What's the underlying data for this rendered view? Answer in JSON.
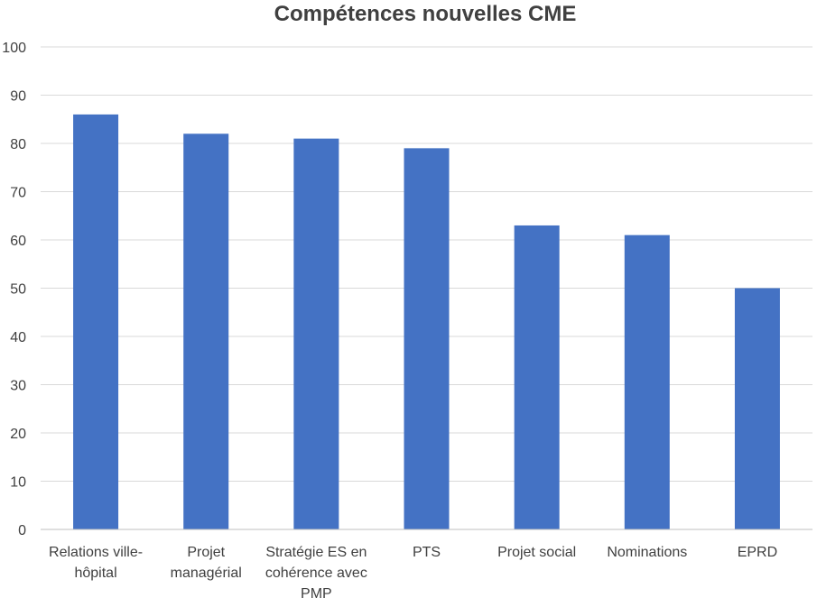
{
  "chart_data": {
    "type": "bar",
    "title": "Compétences nouvelles CME",
    "xlabel": "",
    "ylabel": "",
    "ylim": [
      0,
      100
    ],
    "yticks": [
      0,
      10,
      20,
      30,
      40,
      50,
      60,
      70,
      80,
      90,
      100
    ],
    "grid": true,
    "categories": [
      [
        "Relations ville-",
        "hôpital"
      ],
      [
        "Projet",
        "managérial"
      ],
      [
        "Stratégie ES en",
        "cohérence avec",
        "PMP"
      ],
      [
        "PTS"
      ],
      [
        "Projet social"
      ],
      [
        "Nominations"
      ],
      [
        "EPRD"
      ]
    ],
    "values": [
      86,
      82,
      81,
      79,
      63,
      61,
      50
    ],
    "colors": {
      "bar": "#4472c4"
    }
  }
}
